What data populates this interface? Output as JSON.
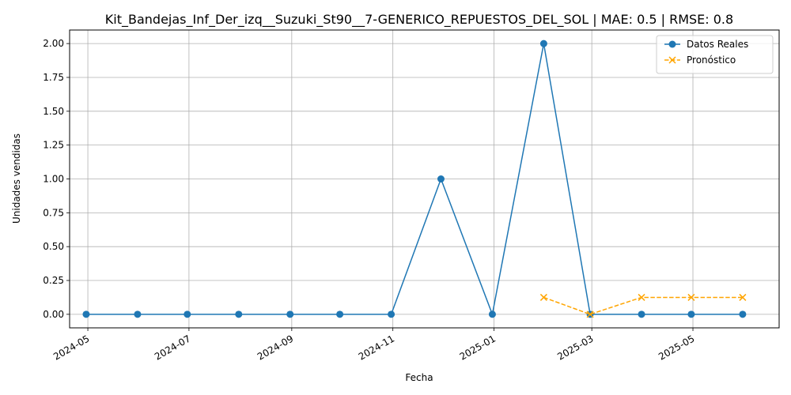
{
  "chart_data": {
    "type": "line",
    "title": "Kit_Bandejas_Inf_Der_izq__Suzuki_St90__7-GENERICO_REPUESTOS_DEL_SOL | MAE: 0.5 | RMSE: 0.8",
    "xlabel": "Fecha",
    "ylabel": "Unidades vendidas",
    "x_ticks": [
      "2024-05",
      "2024-07",
      "2024-09",
      "2024-11",
      "2025-01",
      "2025-03",
      "2025-05"
    ],
    "y_ticks": [
      "0.00",
      "0.25",
      "0.50",
      "0.75",
      "1.00",
      "1.25",
      "1.50",
      "1.75",
      "2.00"
    ],
    "xlim": [
      "2024-04-20",
      "2025-06-22"
    ],
    "ylim": [
      -0.1,
      2.1
    ],
    "grid": true,
    "legend_position": "top-right",
    "series": [
      {
        "name": "Datos Reales",
        "color": "#1f77b4",
        "marker": "circle",
        "line_style": "solid",
        "x": [
          "2024-04-30",
          "2024-05-31",
          "2024-06-30",
          "2024-07-31",
          "2024-08-31",
          "2024-09-30",
          "2024-10-31",
          "2024-11-30",
          "2024-12-31",
          "2025-01-31",
          "2025-02-28",
          "2025-03-31",
          "2025-04-30",
          "2025-05-31"
        ],
        "values": [
          0,
          0,
          0,
          0,
          0,
          0,
          0,
          1,
          0,
          2,
          0,
          0,
          0,
          0
        ]
      },
      {
        "name": "Pronóstico",
        "color": "#ffa500",
        "marker": "x",
        "line_style": "dashed",
        "x": [
          "2025-01-31",
          "2025-02-28",
          "2025-03-31",
          "2025-04-30",
          "2025-05-31"
        ],
        "values": [
          0.125,
          0,
          0.125,
          0.125,
          0.125
        ]
      }
    ]
  }
}
